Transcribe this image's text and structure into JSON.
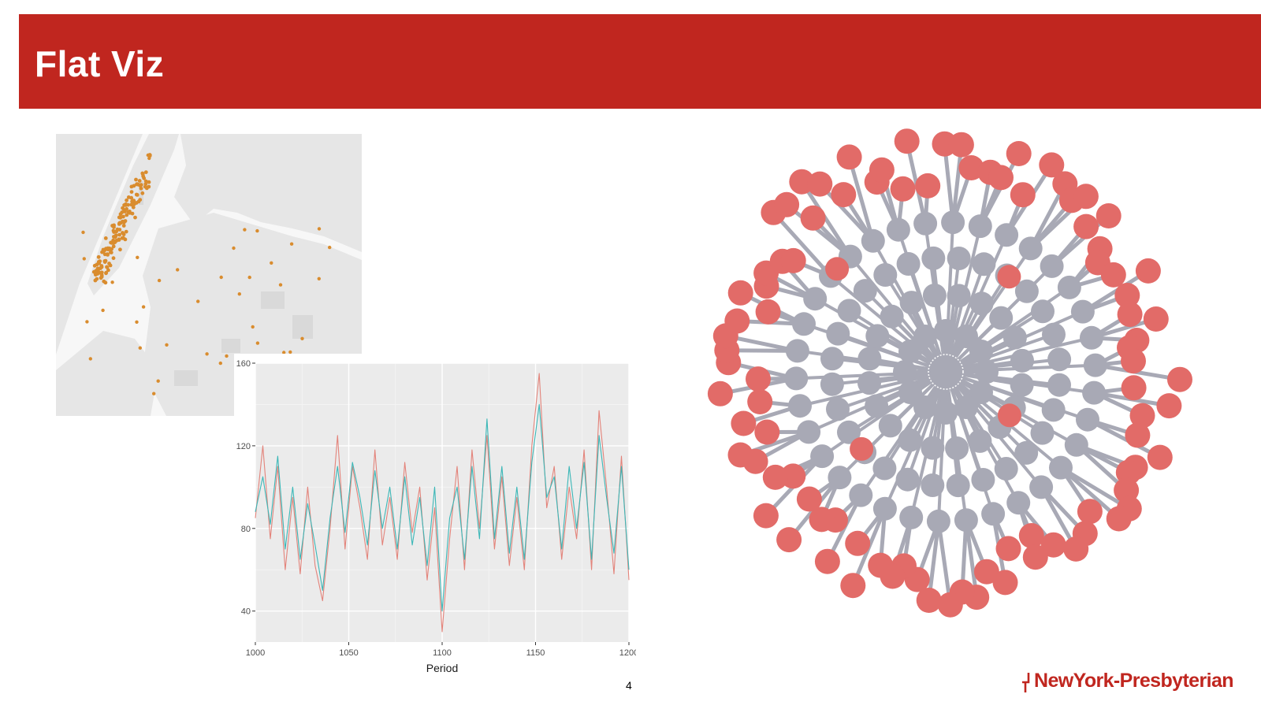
{
  "slide": {
    "title": "Flat Viz",
    "page_number": "4",
    "logo_text": "NewYork-Presbyterian",
    "accent_color": "#c0261f"
  },
  "map": {
    "land_color": "#e6e6e6",
    "water_color": "#f7f7f7",
    "point_color": "#d98c2e"
  },
  "network": {
    "center_color": "#a8a9b5",
    "ring_color": "#a8a9b5",
    "leaf_color": "#e26b68",
    "edge_color": "#a8a9b5"
  },
  "chart_data": {
    "type": "line",
    "xlabel": "Period",
    "ylabel": "",
    "xlim": [
      1000,
      1200
    ],
    "ylim": [
      25,
      160
    ],
    "x_ticks": [
      1000,
      1050,
      1100,
      1150,
      1200
    ],
    "y_ticks": [
      40,
      80,
      120,
      160
    ],
    "grid": true,
    "legend": "none",
    "x": [
      1000,
      1004,
      1008,
      1012,
      1016,
      1020,
      1024,
      1028,
      1032,
      1036,
      1040,
      1044,
      1048,
      1052,
      1056,
      1060,
      1064,
      1068,
      1072,
      1076,
      1080,
      1084,
      1088,
      1092,
      1096,
      1100,
      1104,
      1108,
      1112,
      1116,
      1120,
      1124,
      1128,
      1132,
      1136,
      1140,
      1144,
      1148,
      1152,
      1156,
      1160,
      1164,
      1168,
      1172,
      1176,
      1180,
      1184,
      1188,
      1192,
      1196,
      1200
    ],
    "series": [
      {
        "color": "#e3837a",
        "values": [
          85,
          120,
          75,
          110,
          60,
          95,
          58,
          100,
          62,
          45,
          80,
          125,
          70,
          110,
          90,
          65,
          118,
          72,
          95,
          65,
          112,
          78,
          100,
          55,
          90,
          30,
          75,
          110,
          60,
          118,
          80,
          125,
          70,
          105,
          62,
          95,
          60,
          120,
          155,
          90,
          110,
          65,
          100,
          75,
          118,
          60,
          137,
          100,
          58,
          115,
          55
        ]
      },
      {
        "color": "#3bb7b7",
        "values": [
          88,
          105,
          82,
          115,
          70,
          100,
          65,
          92,
          72,
          50,
          85,
          110,
          78,
          112,
          95,
          72,
          108,
          80,
          100,
          70,
          105,
          72,
          95,
          62,
          100,
          40,
          85,
          100,
          65,
          110,
          75,
          133,
          75,
          110,
          68,
          100,
          65,
          112,
          140,
          95,
          105,
          70,
          110,
          80,
          112,
          65,
          125,
          95,
          68,
          110,
          60
        ]
      }
    ]
  }
}
